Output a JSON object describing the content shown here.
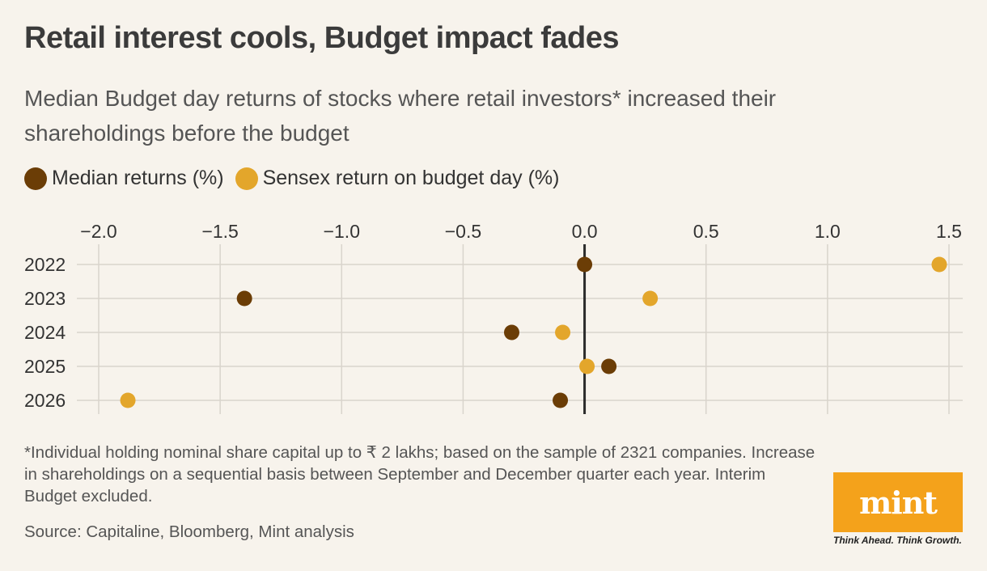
{
  "title": "Retail interest cools, Budget impact fades",
  "subtitle": "Median Budget day returns of stocks where retail investors* increased their shareholdings before the budget",
  "footnote": "*Individual holding nominal share capital up to ₹ 2 lakhs; based on the sample of 2321 companies. Increase in shareholdings on a sequential basis between September and December quarter each year. Interim Budget excluded.",
  "source": "Source: Capitaline, Bloomberg, Mint analysis",
  "logo": {
    "text": "mint",
    "tagline": "Think Ahead. Think Growth."
  },
  "colors": {
    "median": "#6b3d06",
    "sensex": "#e3a62b",
    "grid": "#d9d4cc",
    "zero": "#2b2b2b"
  },
  "chart_data": {
    "type": "scatter",
    "title": "Retail interest cools, Budget impact fades",
    "categories": [
      "2022",
      "2023",
      "2024",
      "2025",
      "2026"
    ],
    "x_ticks": [
      -2.0,
      -1.5,
      -1.0,
      -0.5,
      0.0,
      0.5,
      1.0,
      1.5
    ],
    "x_tick_labels": [
      "−2.0",
      "−1.5",
      "−1.0",
      "−0.5",
      "0.0",
      "0.5",
      "1.0",
      "1.5"
    ],
    "xlim": [
      -2.0,
      1.5
    ],
    "grid": true,
    "legend_position": "top-left",
    "series": [
      {
        "name": "Median returns (%)",
        "color": "#6b3d06",
        "values": [
          0.0,
          -1.4,
          -0.3,
          0.1,
          -0.1
        ]
      },
      {
        "name": "Sensex return on budget day (%)",
        "color": "#e3a62b",
        "values": [
          1.46,
          0.27,
          -0.09,
          0.01,
          -1.88
        ]
      }
    ]
  }
}
